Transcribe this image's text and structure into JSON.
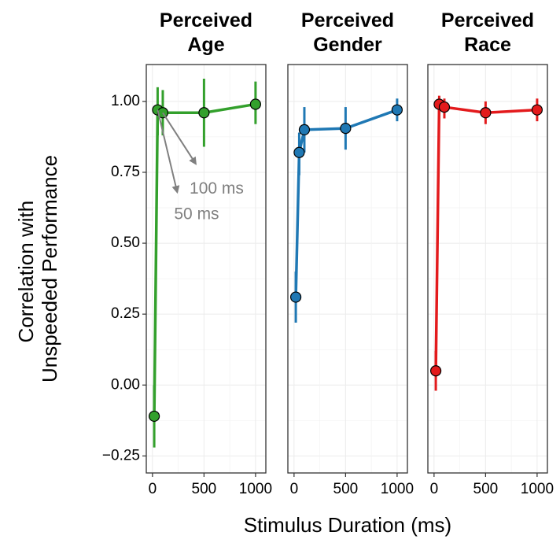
{
  "chart_data": {
    "type": "line",
    "xlabel": "Stimulus Duration (ms)",
    "ylabel_lines": [
      "Correlation with",
      "Unspeeded Performance"
    ],
    "ylim": [
      -0.31,
      1.13
    ],
    "xlim": [
      -60,
      1100
    ],
    "y_ticks": [
      -0.25,
      0,
      0.25,
      0.5,
      0.75,
      1.0
    ],
    "y_tick_labels": [
      "−0.25",
      "0.00",
      "0.25",
      "0.50",
      "0.75",
      "1.00"
    ],
    "x_ticks": [
      0,
      500,
      1000
    ],
    "x_tick_labels": [
      "0",
      "500",
      "1000"
    ],
    "grid": true,
    "panels": [
      {
        "title_lines": [
          "Perceived",
          "Age"
        ],
        "color": "#33a02c",
        "x": [
          17,
          50,
          100,
          500,
          1000
        ],
        "y": [
          -0.11,
          0.97,
          0.96,
          0.96,
          0.99
        ],
        "err_low": [
          -0.22,
          0.88,
          0.88,
          0.84,
          0.92
        ],
        "err_high": [
          0.0,
          1.05,
          1.04,
          1.08,
          1.07
        ],
        "annotations": [
          {
            "text": "100 ms",
            "target_x": 100,
            "target_y": 0.96,
            "tip_x": 420,
            "tip_y": 0.78,
            "label_x": 360,
            "label_y": 0.69
          },
          {
            "text": "50 ms",
            "target_x": 50,
            "target_y": 0.97,
            "tip_x": 240,
            "tip_y": 0.68,
            "label_x": 210,
            "label_y": 0.6
          }
        ]
      },
      {
        "title_lines": [
          "Perceived",
          "Gender"
        ],
        "color": "#1f78b4",
        "x": [
          17,
          50,
          100,
          500,
          1000
        ],
        "y": [
          0.31,
          0.82,
          0.9,
          0.905,
          0.97
        ],
        "err_low": [
          0.22,
          0.74,
          0.82,
          0.83,
          0.93
        ],
        "err_high": [
          0.4,
          0.89,
          0.98,
          0.98,
          1.01
        ],
        "annotations": []
      },
      {
        "title_lines": [
          "Perceived",
          "Race"
        ],
        "color": "#e31a1c",
        "x": [
          17,
          50,
          100,
          500,
          1000
        ],
        "y": [
          0.05,
          0.99,
          0.98,
          0.96,
          0.97
        ],
        "err_low": [
          -0.02,
          0.95,
          0.94,
          0.92,
          0.93
        ],
        "err_high": [
          0.12,
          1.02,
          1.01,
          1.0,
          1.01
        ],
        "annotations": []
      }
    ]
  },
  "colors": {
    "annotation": "#808080",
    "grid": "#ebebeb",
    "panel_border": "#333333"
  }
}
